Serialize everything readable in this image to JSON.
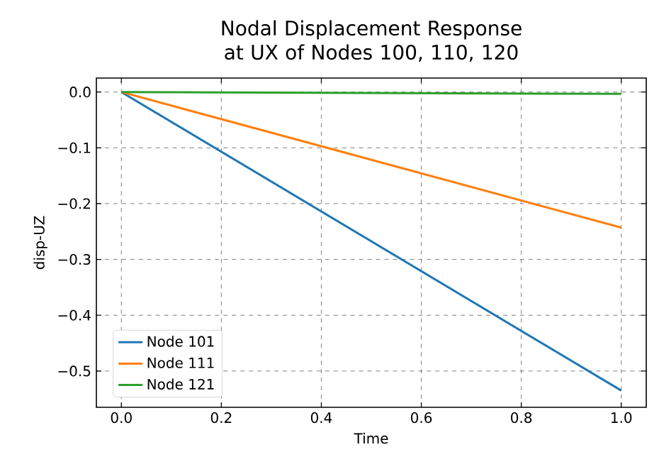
{
  "chart_data": {
    "type": "line",
    "title": "Nodal Displacement Response at UX of Nodes 100, 110, 120",
    "xlabel": "Time",
    "ylabel": "disp-UZ",
    "x": [
      0,
      1
    ],
    "series": [
      {
        "name": "Node 101",
        "color": "#1f77b4",
        "values": [
          0,
          -0.535
        ]
      },
      {
        "name": "Node 111",
        "color": "#ff7f0e",
        "values": [
          0,
          -0.243
        ]
      },
      {
        "name": "Node 121",
        "color": "#2ca02c",
        "values": [
          0,
          -0.0034
        ]
      }
    ],
    "xlim": [
      -0.05,
      1.05
    ],
    "ylim": [
      -0.565,
      0.025
    ],
    "xticks": [
      {
        "value": 0,
        "label": "0.0"
      },
      0.2,
      0.4,
      0.6,
      0.8,
      {
        "value": 1,
        "label": "1.0"
      }
    ],
    "yticks": [
      {
        "value": -0.5,
        "label": "−0.5"
      },
      {
        "value": -0.4,
        "label": "−0.4"
      },
      {
        "value": -0.3,
        "label": "−0.3"
      },
      {
        "value": -0.2,
        "label": "−0.2"
      },
      {
        "value": -0.1,
        "label": "−0.1"
      },
      {
        "value": 0,
        "label": "0.0"
      }
    ],
    "grid": true,
    "legend": "bottom left",
    "line_style": "solid",
    "marker": "none"
  }
}
